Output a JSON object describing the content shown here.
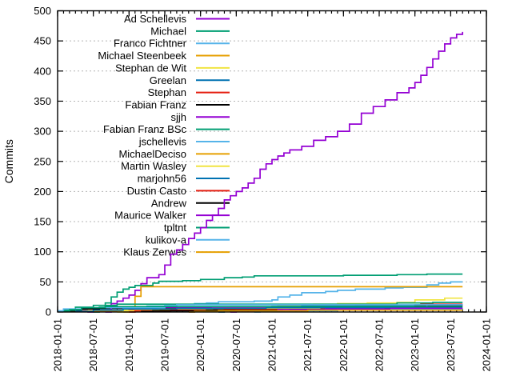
{
  "figure": {
    "ylabel": "Commits",
    "background": "#ffffff",
    "axis_color": "#000000",
    "grid_color": "#b4b4b4"
  },
  "chart_data": {
    "type": "line",
    "step_interpolation": "after",
    "title": "",
    "xlabel": "",
    "ylabel": "Commits",
    "ylim": [
      0,
      500
    ],
    "y_ticks": [
      0,
      50,
      100,
      150,
      200,
      250,
      300,
      350,
      400,
      450,
      500
    ],
    "x_range": [
      "2018-01-01",
      "2024-01-01"
    ],
    "x_tick_labels": [
      "2018-01-01",
      "2018-07-01",
      "2019-01-01",
      "2019-07-01",
      "2020-01-01",
      "2020-07-01",
      "2021-01-01",
      "2021-07-01",
      "2022-01-01",
      "2022-07-01",
      "2023-01-01",
      "2023-07-01",
      "2024-01-01"
    ],
    "grid": "horizontal-dotted",
    "legend_position": "top-left-inside",
    "series": [
      {
        "name": "Ad Schellevis",
        "color": "#9400d3",
        "points": [
          [
            "2018-06",
            0
          ],
          [
            "2018-07",
            2
          ],
          [
            "2018-08",
            5
          ],
          [
            "2018-09",
            9
          ],
          [
            "2018-10",
            14
          ],
          [
            "2018-11",
            18
          ],
          [
            "2018-12",
            23
          ],
          [
            "2019-01",
            28
          ],
          [
            "2019-02",
            36
          ],
          [
            "2019-03",
            47
          ],
          [
            "2019-04",
            57
          ],
          [
            "2019-06",
            62
          ],
          [
            "2019-07",
            78
          ],
          [
            "2019-08",
            96
          ],
          [
            "2019-09",
            103
          ],
          [
            "2019-10",
            112
          ],
          [
            "2019-11",
            122
          ],
          [
            "2019-12",
            131
          ],
          [
            "2020-01",
            140
          ],
          [
            "2020-02",
            152
          ],
          [
            "2020-03",
            161
          ],
          [
            "2020-04",
            172
          ],
          [
            "2020-05",
            186
          ],
          [
            "2020-06",
            193
          ],
          [
            "2020-07",
            200
          ],
          [
            "2020-08",
            206
          ],
          [
            "2020-09",
            214
          ],
          [
            "2020-10",
            222
          ],
          [
            "2020-11",
            237
          ],
          [
            "2020-12",
            246
          ],
          [
            "2021-01",
            253
          ],
          [
            "2021-02",
            259
          ],
          [
            "2021-03",
            264
          ],
          [
            "2021-04",
            269
          ],
          [
            "2021-06",
            275
          ],
          [
            "2021-08",
            285
          ],
          [
            "2021-10",
            291
          ],
          [
            "2021-12",
            300
          ],
          [
            "2022-02",
            312
          ],
          [
            "2022-04",
            330
          ],
          [
            "2022-06",
            341
          ],
          [
            "2022-08",
            352
          ],
          [
            "2022-10",
            364
          ],
          [
            "2022-12",
            372
          ],
          [
            "2023-01",
            381
          ],
          [
            "2023-02",
            393
          ],
          [
            "2023-03",
            406
          ],
          [
            "2023-04",
            420
          ],
          [
            "2023-05",
            433
          ],
          [
            "2023-06",
            445
          ],
          [
            "2023-07",
            455
          ],
          [
            "2023-08",
            461
          ],
          [
            "2023-09",
            465
          ]
        ]
      },
      {
        "name": "Michael",
        "color": "#009e73",
        "points": [
          [
            "2018-07",
            0
          ],
          [
            "2018-08",
            8
          ],
          [
            "2018-09",
            15
          ],
          [
            "2018-10",
            25
          ],
          [
            "2018-11",
            33
          ],
          [
            "2018-12",
            38
          ],
          [
            "2019-01",
            41
          ],
          [
            "2019-02",
            44
          ],
          [
            "2019-05",
            48
          ],
          [
            "2019-06",
            51
          ],
          [
            "2019-10",
            52
          ],
          [
            "2020-01",
            54
          ],
          [
            "2020-05",
            57
          ],
          [
            "2020-08",
            58
          ],
          [
            "2020-10",
            60
          ],
          [
            "2022-01",
            61
          ],
          [
            "2022-10",
            62
          ],
          [
            "2023-03",
            63
          ],
          [
            "2023-09",
            63
          ]
        ]
      },
      {
        "name": "Franco Fichtner",
        "color": "#56b4e9",
        "points": [
          [
            "2018-01",
            1
          ],
          [
            "2018-03",
            3
          ],
          [
            "2018-06",
            5
          ],
          [
            "2018-10",
            6
          ],
          [
            "2019-01",
            8
          ],
          [
            "2019-04",
            10
          ],
          [
            "2019-08",
            12
          ],
          [
            "2019-12",
            14
          ],
          [
            "2020-02",
            15
          ],
          [
            "2020-04",
            17
          ],
          [
            "2020-10",
            18
          ],
          [
            "2021-01",
            20
          ],
          [
            "2021-02",
            25
          ],
          [
            "2021-04",
            28
          ],
          [
            "2021-06",
            32
          ],
          [
            "2021-10",
            34
          ],
          [
            "2021-12",
            36
          ],
          [
            "2022-03",
            38
          ],
          [
            "2022-08",
            40
          ],
          [
            "2022-11",
            41
          ],
          [
            "2023-03",
            45
          ],
          [
            "2023-05",
            48
          ],
          [
            "2023-07",
            50
          ],
          [
            "2023-09",
            50
          ]
        ]
      },
      {
        "name": "Michael Steenbeek",
        "color": "#e69f00",
        "points": [
          [
            "2018-12",
            0
          ],
          [
            "2019-01",
            8
          ],
          [
            "2019-02",
            26
          ],
          [
            "2019-03",
            42
          ],
          [
            "2023-09",
            42
          ]
        ]
      },
      {
        "name": "Stephan de Wit",
        "color": "#f0e442",
        "points": [
          [
            "2018-02",
            2
          ],
          [
            "2018-08",
            3
          ],
          [
            "2019-03",
            5
          ],
          [
            "2019-10",
            7
          ],
          [
            "2020-06",
            9
          ],
          [
            "2021-02",
            11
          ],
          [
            "2021-08",
            13
          ],
          [
            "2021-12",
            14
          ],
          [
            "2022-05",
            15
          ],
          [
            "2022-10",
            16
          ],
          [
            "2023-01",
            20
          ],
          [
            "2023-06",
            23
          ],
          [
            "2023-09",
            23
          ]
        ]
      },
      {
        "name": "Greelan",
        "color": "#0072b2",
        "points": [
          [
            "2020-04",
            0
          ],
          [
            "2020-05",
            4
          ],
          [
            "2020-08",
            7
          ],
          [
            "2021-01",
            9
          ],
          [
            "2021-06",
            10
          ],
          [
            "2022-03",
            11
          ],
          [
            "2023-01",
            12
          ],
          [
            "2023-09",
            12
          ]
        ]
      },
      {
        "name": "Stephan",
        "color": "#e51e10",
        "points": [
          [
            "2018-04",
            2
          ],
          [
            "2019-01",
            3
          ],
          [
            "2020-01",
            4
          ],
          [
            "2021-01",
            5
          ],
          [
            "2022-01",
            6
          ],
          [
            "2023-02",
            13
          ],
          [
            "2023-09",
            13
          ]
        ]
      },
      {
        "name": "Fabian Franz",
        "color": "#000000",
        "points": [
          [
            "2018-03",
            2
          ],
          [
            "2018-05",
            5
          ],
          [
            "2018-08",
            6
          ],
          [
            "2019-06",
            7
          ],
          [
            "2020-04",
            8
          ],
          [
            "2021-01",
            9
          ],
          [
            "2023-01",
            10
          ],
          [
            "2023-09",
            10
          ]
        ]
      },
      {
        "name": "sjjh",
        "color": "#9400d3",
        "points": [
          [
            "2018-09",
            0
          ],
          [
            "2018-10",
            8
          ],
          [
            "2023-03",
            12
          ],
          [
            "2023-09",
            12
          ]
        ]
      },
      {
        "name": "Fabian Franz BSc",
        "color": "#009e73",
        "points": [
          [
            "2018-02",
            3
          ],
          [
            "2018-04",
            8
          ],
          [
            "2018-07",
            11
          ],
          [
            "2018-11",
            13
          ],
          [
            "2022-10",
            15
          ],
          [
            "2023-04",
            16
          ],
          [
            "2023-09",
            16
          ]
        ]
      },
      {
        "name": "jschellevis",
        "color": "#56b4e9",
        "points": [
          [
            "2018-01",
            2
          ],
          [
            "2018-02",
            5
          ],
          [
            "2018-05",
            7
          ],
          [
            "2019-07",
            11
          ],
          [
            "2019-09",
            12
          ],
          [
            "2023-09",
            12
          ]
        ]
      },
      {
        "name": "MichaelDeciso",
        "color": "#e69f00",
        "points": [
          [
            "2018-05",
            1
          ],
          [
            "2018-06",
            2
          ],
          [
            "2019-04",
            3
          ],
          [
            "2020-08",
            4
          ],
          [
            "2022-06",
            5
          ],
          [
            "2023-09",
            5
          ]
        ]
      },
      {
        "name": "Martin Wasley",
        "color": "#f0e442",
        "points": [
          [
            "2018-11",
            0
          ],
          [
            "2018-12",
            2
          ],
          [
            "2019-02",
            4
          ],
          [
            "2019-06",
            5
          ],
          [
            "2020-03",
            6
          ],
          [
            "2021-09",
            7
          ],
          [
            "2023-09",
            7
          ]
        ]
      },
      {
        "name": "marjohn56",
        "color": "#0072b2",
        "points": [
          [
            "2018-04",
            1
          ],
          [
            "2018-07",
            3
          ],
          [
            "2018-12",
            5
          ],
          [
            "2019-09",
            6
          ],
          [
            "2020-12",
            7
          ],
          [
            "2023-09",
            7
          ]
        ]
      },
      {
        "name": "Dustin Casto",
        "color": "#e51e10",
        "points": [
          [
            "2019-01",
            0
          ],
          [
            "2019-02",
            2
          ],
          [
            "2019-08",
            3
          ],
          [
            "2020-05",
            4
          ],
          [
            "2023-09",
            4
          ]
        ]
      },
      {
        "name": "Andrew",
        "color": "#000000",
        "points": [
          [
            "2019-03",
            1
          ],
          [
            "2019-05",
            2
          ],
          [
            "2020-02",
            3
          ],
          [
            "2021-04",
            4
          ],
          [
            "2022-08",
            5
          ],
          [
            "2023-09",
            5
          ]
        ]
      },
      {
        "name": "Maurice Walker",
        "color": "#9400d3",
        "points": [
          [
            "2020-06",
            0
          ],
          [
            "2020-07",
            2
          ],
          [
            "2021-02",
            4
          ],
          [
            "2021-10",
            5
          ],
          [
            "2022-09",
            6
          ],
          [
            "2023-09",
            6
          ]
        ]
      },
      {
        "name": "tpltnt",
        "color": "#009e73",
        "points": [
          [
            "2018-02",
            1
          ],
          [
            "2018-03",
            4
          ],
          [
            "2018-05",
            7
          ],
          [
            "2018-09",
            9
          ],
          [
            "2023-09",
            9
          ]
        ]
      },
      {
        "name": "kulikov-a",
        "color": "#56b4e9",
        "points": [
          [
            "2020-10",
            0
          ],
          [
            "2020-11",
            1
          ],
          [
            "2021-03",
            2
          ],
          [
            "2021-12",
            3
          ],
          [
            "2022-09",
            4
          ],
          [
            "2023-09",
            4
          ]
        ]
      },
      {
        "name": "Klaus Zerwes",
        "color": "#e69f00",
        "points": [
          [
            "2019-11",
            0
          ],
          [
            "2019-12",
            1
          ],
          [
            "2020-04",
            2
          ],
          [
            "2021-07",
            3
          ],
          [
            "2023-09",
            3
          ]
        ]
      }
    ]
  }
}
